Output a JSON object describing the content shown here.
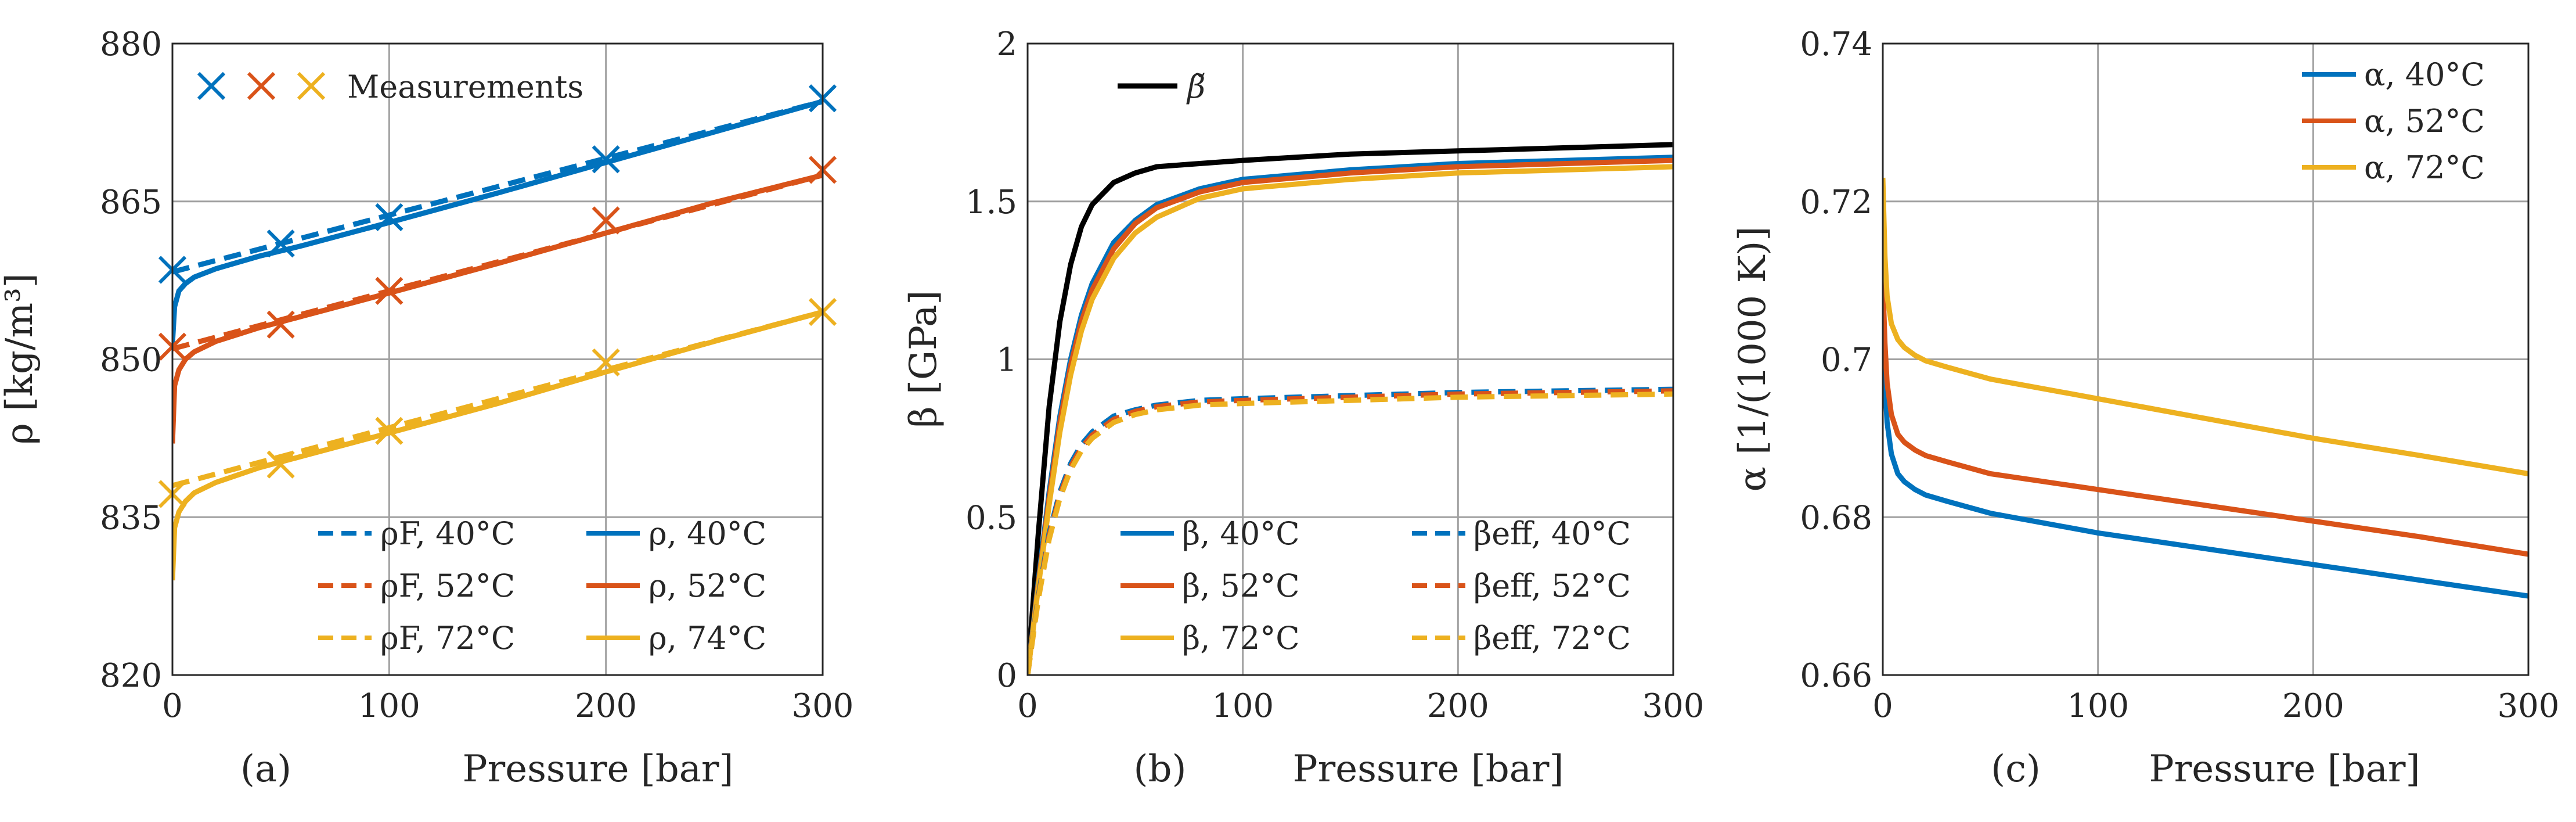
{
  "colors": {
    "blue": "#0072bd",
    "red": "#d95319",
    "yellow": "#edb120",
    "black": "#000000"
  },
  "chart_data": [
    {
      "type": "line",
      "panel_label": "(a)",
      "xlabel": "Pressure [bar]",
      "ylabel": "ρ [kg/m³]",
      "xlim": [
        0,
        300
      ],
      "ylim": [
        820,
        880
      ],
      "xticks": [
        "0",
        "100",
        "200",
        "300"
      ],
      "yticks": [
        "820",
        "835",
        "850",
        "865",
        "880"
      ],
      "grid": true,
      "legend_top": "Measurements",
      "legend_bottom": [
        "ρF, 40°C",
        "ρ, 40°C",
        "ρF, 52°C",
        "ρ, 52°C",
        "ρF, 72°C",
        "ρ, 74°C"
      ],
      "series": [
        {
          "name": "Measurements 40°C",
          "color": "blue",
          "style": "marker",
          "x": [
            0,
            50,
            100,
            200,
            300
          ],
          "y": [
            858.5,
            861.0,
            863.5,
            869.0,
            874.8
          ]
        },
        {
          "name": "Measurements 52°C",
          "color": "red",
          "style": "marker",
          "x": [
            0,
            50,
            100,
            200,
            300
          ],
          "y": [
            851.2,
            853.3,
            856.5,
            863.2,
            868.0
          ]
        },
        {
          "name": "Measurements 72°C",
          "color": "yellow",
          "style": "marker",
          "x": [
            0,
            50,
            100,
            200,
            300
          ],
          "y": [
            837.2,
            840.0,
            843.2,
            849.7,
            854.5
          ]
        },
        {
          "name": "ρF, 40°C",
          "color": "blue",
          "style": "dashed",
          "x": [
            0,
            300
          ],
          "y": [
            858.3,
            874.5
          ]
        },
        {
          "name": "ρF, 52°C",
          "color": "red",
          "style": "dashed",
          "x": [
            0,
            300
          ],
          "y": [
            851.0,
            867.5
          ]
        },
        {
          "name": "ρF, 72°C",
          "color": "yellow",
          "style": "dashed",
          "x": [
            0,
            300
          ],
          "y": [
            838.0,
            854.5
          ]
        },
        {
          "name": "ρ, 40°C",
          "color": "blue",
          "style": "solid",
          "x": [
            0,
            1,
            3,
            6,
            10,
            20,
            40,
            60,
            100,
            150,
            200,
            250,
            300
          ],
          "y": [
            851.5,
            855.0,
            856.5,
            857.2,
            857.8,
            858.6,
            859.8,
            860.8,
            863.0,
            865.8,
            868.7,
            871.6,
            874.5
          ]
        },
        {
          "name": "ρ, 52°C",
          "color": "red",
          "style": "solid",
          "x": [
            0,
            1,
            3,
            6,
            10,
            20,
            40,
            60,
            100,
            150,
            200,
            250,
            300
          ],
          "y": [
            842.0,
            847.5,
            849.0,
            850.0,
            850.7,
            851.7,
            853.0,
            854.1,
            856.3,
            859.1,
            862.0,
            864.9,
            867.5
          ]
        },
        {
          "name": "ρ, 74°C",
          "color": "yellow",
          "style": "solid",
          "x": [
            0,
            1,
            3,
            6,
            10,
            20,
            40,
            60,
            100,
            150,
            200,
            250,
            300
          ],
          "y": [
            829.0,
            834.0,
            835.5,
            836.5,
            837.3,
            838.3,
            839.7,
            840.8,
            843.0,
            845.8,
            848.8,
            851.7,
            854.5
          ]
        }
      ]
    },
    {
      "type": "line",
      "panel_label": "(b)",
      "xlabel": "Pressure [bar]",
      "ylabel": "β [GPa]",
      "xlim": [
        0,
        300
      ],
      "ylim": [
        0,
        2
      ],
      "xticks": [
        "0",
        "100",
        "200",
        "300"
      ],
      "yticks": [
        "0",
        "0.5",
        "1",
        "1.5",
        "2"
      ],
      "grid": true,
      "legend_top": "β̃",
      "legend_bottom": [
        "β, 40°C",
        "βeff, 40°C",
        "β, 52°C",
        "βeff, 52°C",
        "β, 72°C",
        "βeff, 72°C"
      ],
      "series": [
        {
          "name": "β̃",
          "color": "black",
          "style": "solid",
          "x": [
            0,
            5,
            10,
            15,
            20,
            25,
            30,
            40,
            50,
            60,
            80,
            100,
            150,
            200,
            250,
            300
          ],
          "y": [
            0,
            0.45,
            0.85,
            1.12,
            1.3,
            1.42,
            1.49,
            1.56,
            1.59,
            1.61,
            1.62,
            1.63,
            1.65,
            1.66,
            1.67,
            1.68
          ]
        },
        {
          "name": "β, 40°C",
          "color": "blue",
          "style": "solid",
          "x": [
            0,
            5,
            10,
            15,
            20,
            25,
            30,
            40,
            50,
            60,
            80,
            100,
            150,
            200,
            250,
            300
          ],
          "y": [
            0,
            0.3,
            0.58,
            0.82,
            1.0,
            1.14,
            1.24,
            1.37,
            1.44,
            1.49,
            1.54,
            1.57,
            1.6,
            1.62,
            1.63,
            1.64
          ]
        },
        {
          "name": "β, 52°C",
          "color": "red",
          "style": "solid",
          "x": [
            0,
            5,
            10,
            15,
            20,
            25,
            30,
            40,
            50,
            60,
            80,
            100,
            150,
            200,
            250,
            300
          ],
          "y": [
            0,
            0.29,
            0.56,
            0.8,
            0.98,
            1.12,
            1.22,
            1.35,
            1.43,
            1.48,
            1.53,
            1.56,
            1.59,
            1.61,
            1.62,
            1.63
          ]
        },
        {
          "name": "β, 72°C",
          "color": "yellow",
          "style": "solid",
          "x": [
            0,
            5,
            10,
            15,
            20,
            25,
            30,
            40,
            50,
            60,
            80,
            100,
            150,
            200,
            250,
            300
          ],
          "y": [
            0,
            0.28,
            0.54,
            0.77,
            0.95,
            1.09,
            1.19,
            1.32,
            1.4,
            1.45,
            1.51,
            1.54,
            1.57,
            1.59,
            1.6,
            1.61
          ]
        },
        {
          "name": "βeff, 40°C",
          "color": "blue",
          "style": "dashed",
          "x": [
            0,
            5,
            10,
            15,
            20,
            25,
            30,
            40,
            50,
            60,
            80,
            100,
            150,
            200,
            250,
            300
          ],
          "y": [
            0,
            0.25,
            0.45,
            0.58,
            0.67,
            0.73,
            0.77,
            0.82,
            0.84,
            0.855,
            0.87,
            0.875,
            0.885,
            0.895,
            0.9,
            0.905
          ]
        },
        {
          "name": "βeff, 52°C",
          "color": "red",
          "style": "dashed",
          "x": [
            0,
            5,
            10,
            15,
            20,
            25,
            30,
            40,
            50,
            60,
            80,
            100,
            150,
            200,
            250,
            300
          ],
          "y": [
            0,
            0.245,
            0.44,
            0.57,
            0.66,
            0.72,
            0.76,
            0.81,
            0.835,
            0.85,
            0.865,
            0.87,
            0.88,
            0.89,
            0.895,
            0.9
          ]
        },
        {
          "name": "βeff, 72°C",
          "color": "yellow",
          "style": "dashed",
          "x": [
            0,
            5,
            10,
            15,
            20,
            25,
            30,
            40,
            50,
            60,
            80,
            100,
            150,
            200,
            250,
            300
          ],
          "y": [
            0,
            0.24,
            0.43,
            0.56,
            0.65,
            0.71,
            0.75,
            0.8,
            0.825,
            0.84,
            0.855,
            0.86,
            0.87,
            0.88,
            0.885,
            0.89
          ]
        }
      ]
    },
    {
      "type": "line",
      "panel_label": "(c)",
      "xlabel": "Pressure [bar]",
      "ylabel": "α [1/(1000 K)]",
      "xlim": [
        0,
        300
      ],
      "ylim": [
        0.66,
        0.74
      ],
      "xticks": [
        "0",
        "100",
        "200",
        "300"
      ],
      "yticks": [
        "0.66",
        "0.68",
        "0.7",
        "0.72",
        "0.74"
      ],
      "grid": true,
      "legend_top": [
        "α, 40°C",
        "α, 52°C",
        "α, 72°C"
      ],
      "series": [
        {
          "name": "α, 40°C",
          "color": "blue",
          "style": "solid",
          "x": [
            0,
            1,
            2,
            4,
            7,
            10,
            15,
            20,
            30,
            50,
            100,
            150,
            200,
            250,
            300
          ],
          "y": [
            0.705,
            0.697,
            0.692,
            0.688,
            0.6855,
            0.6845,
            0.6835,
            0.6828,
            0.682,
            0.6805,
            0.678,
            0.676,
            0.674,
            0.672,
            0.67
          ]
        },
        {
          "name": "α, 52°C",
          "color": "red",
          "style": "solid",
          "x": [
            0,
            1,
            2,
            4,
            7,
            10,
            15,
            20,
            30,
            50,
            100,
            150,
            200,
            250,
            300
          ],
          "y": [
            0.71,
            0.702,
            0.697,
            0.693,
            0.6905,
            0.6895,
            0.6885,
            0.6878,
            0.687,
            0.6855,
            0.6835,
            0.6815,
            0.6795,
            0.6775,
            0.6753
          ]
        },
        {
          "name": "α, 72°C",
          "color": "yellow",
          "style": "solid",
          "x": [
            0,
            1,
            2,
            4,
            7,
            10,
            15,
            20,
            30,
            50,
            100,
            150,
            200,
            250,
            300
          ],
          "y": [
            0.723,
            0.713,
            0.708,
            0.7045,
            0.7025,
            0.7015,
            0.7005,
            0.6998,
            0.699,
            0.6975,
            0.695,
            0.6925,
            0.69,
            0.6878,
            0.6855
          ]
        }
      ]
    }
  ]
}
